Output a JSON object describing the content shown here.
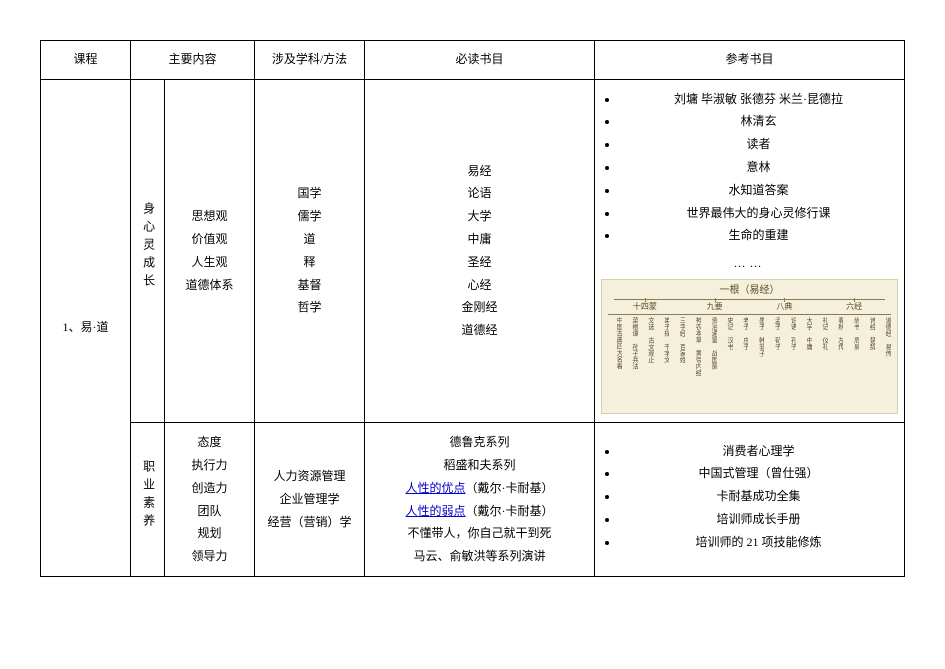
{
  "columns": {
    "course": "课程",
    "content": "主要内容",
    "method": "涉及学科/方法",
    "required": "必读书目",
    "reference": "参考书目"
  },
  "course_label": "1、易·道",
  "rows": [
    {
      "sub_label": "身心灵成长",
      "content": [
        "思想观",
        "价值观",
        "人生观",
        "道德体系"
      ],
      "method": [
        "国学",
        "儒学",
        "道",
        "释",
        "基督",
        "哲学"
      ],
      "required": [
        "易经",
        "论语",
        "大学",
        "中庸",
        "圣经",
        "心经",
        "金刚经",
        "道德经"
      ],
      "reference": [
        "刘墉 毕淑敏 张德芬 米兰·昆德拉",
        "林清玄",
        "读者",
        "意林",
        "水知道答案",
        "世界最伟大的身心灵修行课",
        "生命的重建"
      ],
      "ellipsis": "……",
      "diagram": {
        "root": "一根（易经）",
        "level1": [
          "十四蒙",
          "九要",
          "八典",
          "六经"
        ],
        "leaves": [
          "中国古典四大名着",
          "菜根谭 孙子兵法",
          "文选 古文观止",
          "弟子规 千字文",
          "三字经 百家姓",
          "神农本草 黄帝内经",
          "资治通鉴 战国策",
          "史记 汉书",
          "老子 庄子",
          "墨子 韩非子",
          "孟子 荀子",
          "论语 孔子",
          "大学 中庸",
          "礼记 仪礼",
          "春秋 左传",
          "尚书 周易",
          "诗经 楚辞",
          "道德经 易传"
        ]
      }
    },
    {
      "sub_label": "职业素养",
      "content": [
        "态度",
        "执行力",
        "创造力",
        "团队",
        "规划",
        "领导力"
      ],
      "method": [
        "人力资源管理",
        "企业管理学",
        "经营（营销）学"
      ],
      "required_plain_pre": [
        "德鲁克系列",
        "稻盛和夫系列"
      ],
      "required_links": [
        {
          "text": "人性的优点",
          "suffix": "（戴尔·卡耐基）"
        },
        {
          "text": "人性的弱点",
          "suffix": "（戴尔·卡耐基）"
        }
      ],
      "required_plain_post": [
        "不懂带人，你自己就干到死",
        "马云、俞敏洪等系列演讲"
      ],
      "reference": [
        "消费者心理学",
        "中国式管理（曾仕强）",
        "卡耐基成功全集",
        "培训师成长手册",
        "培训师的 21 项技能修炼"
      ]
    }
  ]
}
